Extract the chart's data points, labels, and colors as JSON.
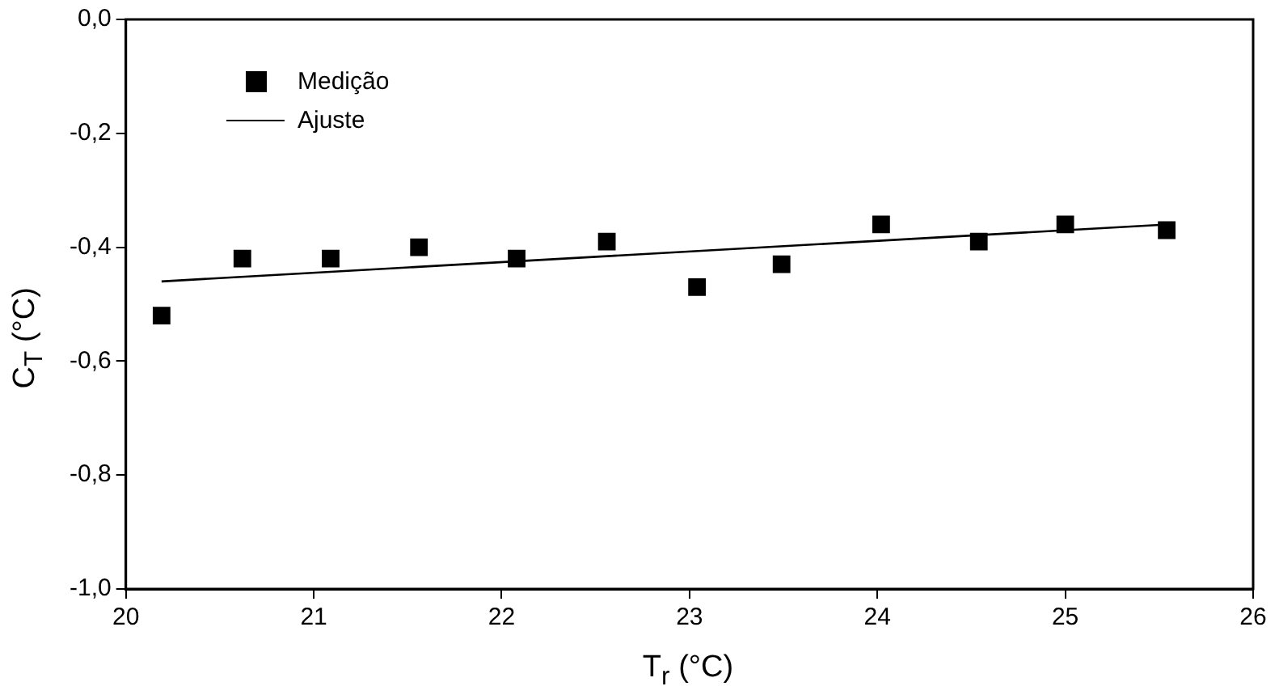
{
  "chart_data": {
    "type": "scatter",
    "xlabel": "T$_{r}$ (°C)",
    "ylabel": "C$_{T}$ (°C)",
    "x": [
      20.19,
      20.62,
      21.09,
      21.56,
      22.08,
      22.56,
      23.04,
      23.49,
      24.02,
      24.54,
      25.0,
      25.54
    ],
    "series": [
      {
        "name": "Medição",
        "color": "#000000",
        "marker": "square",
        "values": [
          -0.52,
          -0.42,
          -0.42,
          -0.4,
          -0.42,
          -0.39,
          -0.47,
          -0.43,
          -0.36,
          -0.39,
          -0.36,
          -0.37
        ]
      },
      {
        "name": "Ajuste",
        "type": "line",
        "color": "#000000",
        "marker": "none",
        "line_style": "solid",
        "x": [
          20.19,
          25.54
        ],
        "values": [
          -0.46,
          -0.36
        ]
      }
    ],
    "xlim": [
      20,
      26
    ],
    "xticks": [
      20,
      21,
      22,
      23,
      24,
      25,
      26
    ],
    "ylim": [
      -1,
      0
    ],
    "yticks": [
      {
        "value": -1,
        "label": "-1,0"
      },
      {
        "value": -0.8,
        "label": "-0,8"
      },
      {
        "value": -0.6,
        "label": "-0,6"
      },
      {
        "value": -0.4,
        "label": "-0,4"
      },
      {
        "value": -0.2,
        "label": "-0,2"
      },
      {
        "value": 0,
        "label": "0,0"
      }
    ],
    "grid": false,
    "legend": "top left"
  }
}
